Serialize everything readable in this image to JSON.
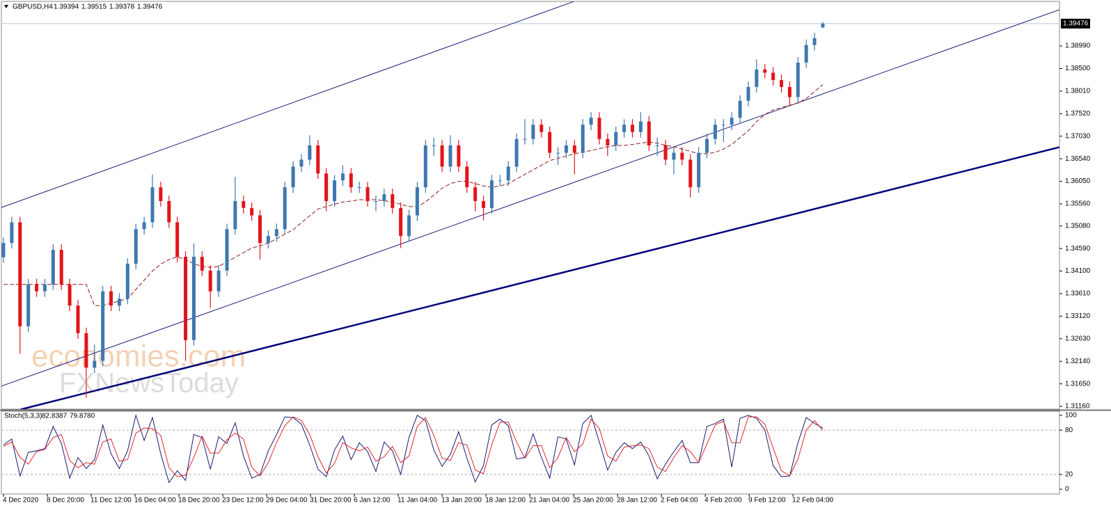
{
  "chart_data": [
    {
      "type": "candlestick",
      "title": "GBPUSD,H4",
      "up_color": "#3f78b0",
      "down_color": "#e3141b",
      "open": [
        1.344,
        1.3471,
        1.3516,
        1.329,
        1.3381,
        1.3366,
        1.3381,
        1.3456,
        1.3381,
        1.3335,
        1.3275,
        1.32,
        1.3215,
        1.3366,
        1.3335,
        1.335,
        1.3426,
        1.3501,
        1.3516,
        1.3592,
        1.3562,
        1.3516,
        1.3441,
        1.326,
        1.3441,
        1.3411,
        1.3366,
        1.3411,
        1.3501,
        1.3562,
        1.3547,
        1.3531,
        1.3471,
        1.3486,
        1.3501,
        1.3592,
        1.3637,
        1.3652,
        1.3683,
        1.3622,
        1.3562,
        1.3607,
        1.3622,
        1.3592,
        1.3592,
        1.3562,
        1.3562,
        1.3577,
        1.3547,
        1.3486,
        1.3531,
        1.3592,
        1.3683,
        1.3683,
        1.3637,
        1.3683,
        1.3637,
        1.3592,
        1.3562,
        1.3547,
        1.3607,
        1.3607,
        1.3637,
        1.3697,
        1.3697,
        1.3728,
        1.3712,
        1.3667,
        1.3667,
        1.3683,
        1.3667,
        1.3728,
        1.3743,
        1.3697,
        1.3683,
        1.3712,
        1.3728,
        1.3712,
        1.3735,
        1.3683,
        1.3683,
        1.3652,
        1.3667,
        1.3652,
        1.3592,
        1.3667,
        1.3697,
        1.3728,
        1.3728,
        1.3743,
        1.378,
        1.381,
        1.3848,
        1.3841,
        1.3825,
        1.381,
        1.3788,
        1.3863,
        1.3901,
        1.39394
      ],
      "high": [
        1.3483,
        1.3528,
        1.3528,
        1.3393,
        1.3393,
        1.3393,
        1.3468,
        1.3468,
        1.3393,
        1.3347,
        1.3287,
        1.325,
        1.3378,
        1.3378,
        1.3362,
        1.3438,
        1.3513,
        1.3528,
        1.362,
        1.3604,
        1.3574,
        1.3528,
        1.3453,
        1.347,
        1.3453,
        1.3423,
        1.3423,
        1.3513,
        1.3615,
        1.3574,
        1.3559,
        1.3543,
        1.3498,
        1.3513,
        1.3604,
        1.3649,
        1.3664,
        1.3705,
        1.3695,
        1.3634,
        1.3619,
        1.364,
        1.3634,
        1.3604,
        1.3604,
        1.3574,
        1.3589,
        1.3589,
        1.3559,
        1.3543,
        1.3604,
        1.3695,
        1.37,
        1.3695,
        1.3705,
        1.3695,
        1.3649,
        1.3604,
        1.3574,
        1.3619,
        1.3619,
        1.3649,
        1.3709,
        1.374,
        1.374,
        1.374,
        1.3724,
        1.3679,
        1.3695,
        1.3695,
        1.374,
        1.3755,
        1.3755,
        1.3709,
        1.3724,
        1.374,
        1.374,
        1.3755,
        1.3747,
        1.37,
        1.3695,
        1.3679,
        1.3679,
        1.3664,
        1.3679,
        1.3709,
        1.374,
        1.374,
        1.3755,
        1.3792,
        1.3822,
        1.387,
        1.386,
        1.3853,
        1.3837,
        1.3822,
        1.3875,
        1.3913,
        1.3928,
        1.39515
      ],
      "low": [
        1.3428,
        1.3459,
        1.323,
        1.3278,
        1.3354,
        1.3354,
        1.3369,
        1.3369,
        1.3323,
        1.3263,
        1.3135,
        1.3188,
        1.3203,
        1.3323,
        1.3323,
        1.3338,
        1.3414,
        1.3489,
        1.3504,
        1.355,
        1.3504,
        1.3429,
        1.3215,
        1.3248,
        1.3399,
        1.333,
        1.3354,
        1.3399,
        1.3489,
        1.3535,
        1.3519,
        1.3435,
        1.3459,
        1.3474,
        1.3489,
        1.358,
        1.3625,
        1.364,
        1.361,
        1.354,
        1.355,
        1.3595,
        1.358,
        1.358,
        1.355,
        1.354,
        1.355,
        1.3535,
        1.346,
        1.3474,
        1.3519,
        1.358,
        1.366,
        1.3625,
        1.3625,
        1.3625,
        1.358,
        1.354,
        1.352,
        1.3535,
        1.3595,
        1.3595,
        1.3625,
        1.3685,
        1.3685,
        1.37,
        1.3655,
        1.364,
        1.3655,
        1.362,
        1.3655,
        1.3716,
        1.3685,
        1.366,
        1.3671,
        1.37,
        1.37,
        1.37,
        1.3671,
        1.366,
        1.364,
        1.362,
        1.364,
        1.357,
        1.358,
        1.3655,
        1.3685,
        1.369,
        1.3716,
        1.3731,
        1.3768,
        1.3798,
        1.3829,
        1.3813,
        1.3798,
        1.377,
        1.3776,
        1.3851,
        1.3889,
        1.39378
      ],
      "close": [
        1.3471,
        1.3516,
        1.329,
        1.3381,
        1.3366,
        1.3381,
        1.3456,
        1.3381,
        1.3335,
        1.3275,
        1.32,
        1.3215,
        1.3366,
        1.3335,
        1.335,
        1.3426,
        1.3501,
        1.3516,
        1.3592,
        1.3562,
        1.3516,
        1.3441,
        1.326,
        1.3441,
        1.3411,
        1.3366,
        1.3411,
        1.3501,
        1.3562,
        1.3547,
        1.3531,
        1.3471,
        1.3486,
        1.3501,
        1.3592,
        1.3637,
        1.3652,
        1.3683,
        1.3622,
        1.3562,
        1.3607,
        1.3622,
        1.3592,
        1.3592,
        1.3562,
        1.3562,
        1.3577,
        1.3547,
        1.3486,
        1.3531,
        1.3592,
        1.3683,
        1.3683,
        1.3637,
        1.3683,
        1.3637,
        1.3592,
        1.3562,
        1.3547,
        1.3607,
        1.3607,
        1.3637,
        1.3697,
        1.3697,
        1.3728,
        1.3712,
        1.3667,
        1.3667,
        1.3683,
        1.3667,
        1.3728,
        1.3743,
        1.3697,
        1.3683,
        1.3712,
        1.3728,
        1.3712,
        1.3735,
        1.3683,
        1.3683,
        1.3652,
        1.3667,
        1.3652,
        1.3592,
        1.3667,
        1.3697,
        1.3728,
        1.3728,
        1.3743,
        1.378,
        1.381,
        1.3848,
        1.3841,
        1.3825,
        1.381,
        1.3788,
        1.3863,
        1.3901,
        1.3916,
        1.39476
      ],
      "ma": [
        1.3381,
        1.3381,
        1.3381,
        1.3381,
        1.3381,
        1.3381,
        1.3381,
        1.3381,
        1.3381,
        1.3381,
        1.3381,
        1.3335,
        1.3335,
        1.334,
        1.3345,
        1.335,
        1.337,
        1.339,
        1.341,
        1.3425,
        1.3435,
        1.3441,
        1.3435,
        1.3426,
        1.342,
        1.3418,
        1.342,
        1.343,
        1.344,
        1.345,
        1.346,
        1.3465,
        1.3471,
        1.348,
        1.349,
        1.35,
        1.3515,
        1.353,
        1.3545,
        1.355,
        1.3555,
        1.356,
        1.3562,
        1.3565,
        1.3565,
        1.3565,
        1.3563,
        1.356,
        1.3555,
        1.355,
        1.355,
        1.356,
        1.3575,
        1.359,
        1.36,
        1.3605,
        1.3605,
        1.36,
        1.3595,
        1.3592,
        1.3595,
        1.36,
        1.361,
        1.362,
        1.363,
        1.364,
        1.365,
        1.3655,
        1.366,
        1.3665,
        1.3668,
        1.3672,
        1.3676,
        1.368,
        1.3683,
        1.3683,
        1.3685,
        1.3688,
        1.369,
        1.3688,
        1.3683,
        1.368,
        1.3675,
        1.367,
        1.3665,
        1.3665,
        1.3668,
        1.3675,
        1.3685,
        1.37,
        1.3715,
        1.3735,
        1.375,
        1.376,
        1.3765,
        1.377,
        1.3775,
        1.3785,
        1.38,
        1.3815
      ],
      "ma_color": "#8b1a1a",
      "price_line_color": "#b8c8d8",
      "trend_lines": [
        {
          "x": [
            -0.42,
            68.97
          ],
          "y": [
            1.3547,
            1.3996
          ],
          "color": "#1b1b7a",
          "width": 1
        },
        {
          "x": [
            -0.42,
            127.6
          ],
          "y": [
            1.3159,
            1.39778
          ],
          "color": "#1b1b7a",
          "width": 1
        },
        {
          "x": [
            2.1,
            127.6
          ],
          "y": [
            1.31094,
            1.36793
          ],
          "color": "#00007a",
          "width": 2.5
        }
      ],
      "watermark": [
        "economies.com",
        "FXNewsToday"
      ],
      "xlim": [
        -0.42,
        127.6
      ],
      "ylim": [
        1.311,
        1.39989
      ],
      "yticks": [
        {
          "value": 1.3899,
          "label": "1.38990"
        },
        {
          "value": 1.385,
          "label": "1.38500"
        },
        {
          "value": 1.3801,
          "label": "1.38010"
        },
        {
          "value": 1.3752,
          "label": "1.37520"
        },
        {
          "value": 1.3703,
          "label": "1.37030"
        },
        {
          "value": 1.3654,
          "label": "1.36540"
        },
        {
          "value": 1.3605,
          "label": "1.36050"
        },
        {
          "value": 1.3556,
          "label": "1.35560"
        },
        {
          "value": 1.3508,
          "label": "1.35080"
        },
        {
          "value": 1.3459,
          "label": "1.34590"
        },
        {
          "value": 1.341,
          "label": "1.34100"
        },
        {
          "value": 1.3361,
          "label": "1.33610"
        },
        {
          "value": 1.3312,
          "label": "1.33120"
        },
        {
          "value": 1.3263,
          "label": "1.32630"
        },
        {
          "value": 1.3214,
          "label": "1.32140"
        },
        {
          "value": 1.3165,
          "label": "1.31650"
        },
        {
          "value": 1.3116,
          "label": "1.31160"
        }
      ]
    },
    {
      "type": "line",
      "title": "Stoch(5,3,3)",
      "series": [
        {
          "color": "#191970",
          "values": [
            60,
            68,
            18,
            50,
            52,
            55,
            85,
            62,
            15,
            43,
            28,
            40,
            87,
            48,
            28,
            52,
            100,
            66,
            97,
            48,
            9,
            25,
            12,
            74,
            70,
            27,
            71,
            62,
            90,
            45,
            15,
            20,
            52,
            74,
            98,
            97,
            88,
            60,
            27,
            17,
            53,
            72,
            40,
            63,
            51,
            24,
            64,
            52,
            20,
            70,
            100,
            93,
            53,
            31,
            47,
            78,
            42,
            10,
            32,
            87,
            95,
            86,
            41,
            43,
            75,
            43,
            15,
            71,
            68,
            33,
            89,
            100,
            64,
            26,
            50,
            63,
            55,
            64,
            45,
            14,
            34,
            51,
            66,
            36,
            36,
            85,
            89,
            95,
            30,
            96,
            100,
            96,
            80,
            32,
            17,
            18,
            63,
            97,
            89,
            82.8387
          ]
        },
        {
          "color": "#e0262b",
          "values": [
            58,
            64,
            43,
            34,
            51,
            54,
            70,
            74,
            39,
            29,
            36,
            34,
            64,
            68,
            38,
            40,
            76,
            83,
            82,
            73,
            29,
            17,
            19,
            43,
            72,
            49,
            49,
            67,
            76,
            68,
            30,
            18,
            36,
            63,
            86,
            98,
            93,
            74,
            44,
            22,
            35,
            63,
            56,
            52,
            57,
            38,
            44,
            58,
            36,
            45,
            85,
            97,
            73,
            42,
            39,
            63,
            60,
            26,
            21,
            60,
            91,
            91,
            64,
            42,
            59,
            59,
            29,
            43,
            70,
            51,
            61,
            95,
            82,
            45,
            38,
            57,
            59,
            60,
            55,
            30,
            24,
            43,
            59,
            51,
            36,
            61,
            87,
            92,
            63,
            63,
            98,
            98,
            88,
            56,
            25,
            18,
            41,
            80,
            93,
            79.878
          ],
          "last_value_label": "79.8780"
        }
      ],
      "levels": [
        20,
        80
      ],
      "xlim": [
        -0.42,
        127.6
      ],
      "ylim": [
        -6.5,
        105.6
      ],
      "yticks": [
        100,
        80,
        20,
        0
      ],
      "xticks": [
        {
          "value": 0,
          "label": "4 Dec 2020"
        },
        {
          "value": 5.3,
          "label": "8 Dec 20:00"
        },
        {
          "value": 10.6,
          "label": "11 Dec 12:00"
        },
        {
          "value": 15.9,
          "label": "16 Dec 04:00"
        },
        {
          "value": 21.2,
          "label": "18 Dec 20:00"
        },
        {
          "value": 26.5,
          "label": "23 Dec 12:00"
        },
        {
          "value": 31.8,
          "label": "29 Dec 04:00"
        },
        {
          "value": 37.1,
          "label": "31 Dec 20:00"
        },
        {
          "value": 42.4,
          "label": "6 Jan 12:00"
        },
        {
          "value": 47.7,
          "label": "11 Jan 04:00"
        },
        {
          "value": 53,
          "label": "13 Jan 20:00"
        },
        {
          "value": 58.3,
          "label": "18 Jan 12:00"
        },
        {
          "value": 63.6,
          "label": "21 Jan 04:00"
        },
        {
          "value": 68.9,
          "label": "25 Jan 20:00"
        },
        {
          "value": 74.2,
          "label": "28 Jan 12:00"
        },
        {
          "value": 79.5,
          "label": "2 Feb 04:00"
        },
        {
          "value": 84.8,
          "label": "4 Feb 20:00"
        },
        {
          "value": 90.1,
          "label": "9 Feb 12:00"
        },
        {
          "value": 95.4,
          "label": "12 Feb 04:00"
        }
      ]
    }
  ]
}
